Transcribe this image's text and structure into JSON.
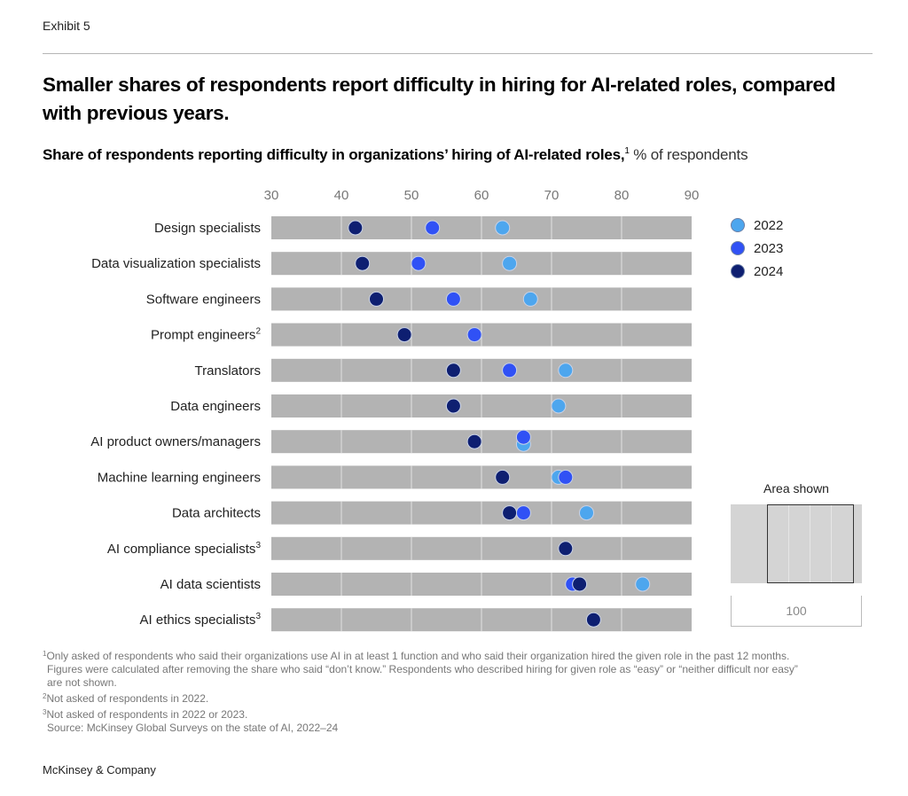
{
  "header": {
    "exhibit": "Exhibit 5",
    "title": "Smaller shares of respondents report difficulty in hiring for AI-related roles, compared with previous years.",
    "subtitle_bold": "Share of respondents reporting difficulty in organizations’ hiring of AI-related roles,",
    "subtitle_sup": "1",
    "subtitle_unit": " % of respondents"
  },
  "colors": {
    "2022": "#4da6ee",
    "2023": "#3051f5",
    "2024": "#0e1f71",
    "track": "#b3b3b3",
    "grid": "#e2e2e2"
  },
  "chart_data": {
    "type": "scatter",
    "subtype": "dot-plot",
    "title": "Share of respondents reporting difficulty in organizations’ hiring of AI-related roles",
    "xlabel": "% of respondents",
    "ylabel": "",
    "xlim": [
      30,
      90
    ],
    "xticks": [
      30,
      40,
      50,
      60,
      70,
      80,
      90
    ],
    "grid": true,
    "legend_position": "top-right",
    "categories": [
      {
        "label": "Design specialists",
        "sup": ""
      },
      {
        "label": "Data visualization specialists",
        "sup": ""
      },
      {
        "label": "Software engineers",
        "sup": ""
      },
      {
        "label": "Prompt engineers",
        "sup": "2"
      },
      {
        "label": "Translators",
        "sup": ""
      },
      {
        "label": "Data engineers",
        "sup": ""
      },
      {
        "label": "AI product owners/managers",
        "sup": ""
      },
      {
        "label": "Machine learning engineers",
        "sup": ""
      },
      {
        "label": "Data architects",
        "sup": ""
      },
      {
        "label": "AI compliance specialists",
        "sup": "3"
      },
      {
        "label": "AI data scientists",
        "sup": ""
      },
      {
        "label": "AI ethics specialists",
        "sup": "3"
      }
    ],
    "series": [
      {
        "name": "2022",
        "values": [
          63,
          64,
          67,
          null,
          72,
          71,
          66,
          71,
          75,
          null,
          83,
          null
        ]
      },
      {
        "name": "2023",
        "values": [
          53,
          51,
          56,
          59,
          64,
          56,
          66,
          72,
          66,
          null,
          73,
          null
        ]
      },
      {
        "name": "2024",
        "values": [
          42,
          43,
          45,
          49,
          56,
          56,
          59,
          63,
          64,
          72,
          74,
          76
        ]
      }
    ]
  },
  "legend": {
    "items": [
      {
        "label": "2022"
      },
      {
        "label": "2023"
      },
      {
        "label": "2024"
      }
    ]
  },
  "inset": {
    "title": "Area shown",
    "scale_label": "100"
  },
  "footnotes": {
    "note1_sup": "1",
    "note1_line1": "Only asked of respondents who said their organizations use AI in at least 1 function and who said their organization hired the given role in the past 12 months.",
    "note1_line2": "Figures were calculated after removing the share who said “don’t know.” Respondents who described hiring for given role as “easy” or “neither difficult nor easy”",
    "note1_line3": "are not shown.",
    "note2_sup": "2",
    "note2": "Not asked of respondents in 2022.",
    "note3_sup": "3",
    "note3": "Not asked of respondents in 2022 or 2023.",
    "source": "Source: McKinsey Global Surveys on the state of AI, 2022–24"
  },
  "brand": "McKinsey & Company"
}
